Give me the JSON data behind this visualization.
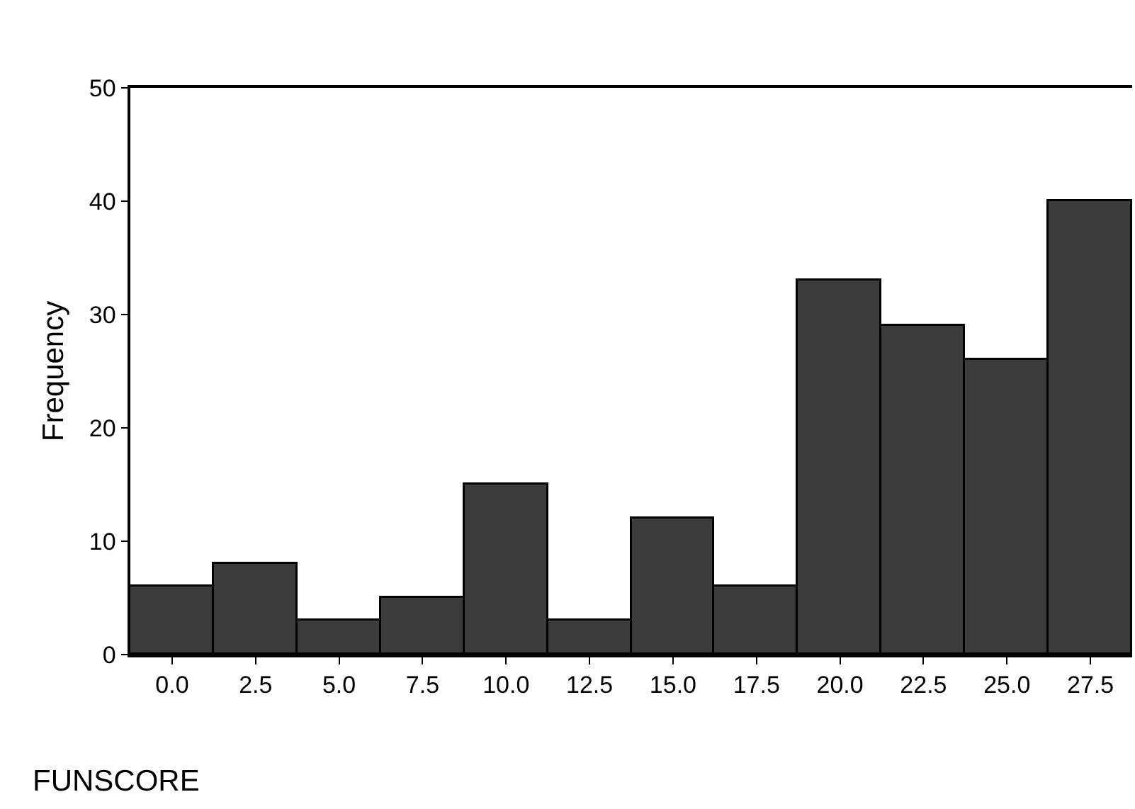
{
  "chart_data": {
    "type": "histogram",
    "xlabel": "FUNSCORE",
    "ylabel": "Frequency",
    "bins": [
      -1.25,
      1.25,
      3.75,
      6.25,
      8.75,
      11.25,
      13.75,
      16.25,
      18.75,
      21.25,
      23.75,
      26.25,
      28.75
    ],
    "values": [
      6,
      8,
      3,
      5,
      15,
      3,
      12,
      6,
      33,
      29,
      26,
      40
    ],
    "color": "#3c3c3c",
    "xlim": [
      -1.25,
      28.75
    ],
    "xticks": [
      {
        "value": 0,
        "label": "0.0"
      },
      {
        "value": 2.5,
        "label": "2.5"
      },
      {
        "value": 5,
        "label": "5.0"
      },
      {
        "value": 7.5,
        "label": "7.5"
      },
      {
        "value": 10,
        "label": "10.0"
      },
      {
        "value": 12.5,
        "label": "12.5"
      },
      {
        "value": 15,
        "label": "15.0"
      },
      {
        "value": 17.5,
        "label": "17.5"
      },
      {
        "value": 20,
        "label": "20.0"
      },
      {
        "value": 22.5,
        "label": "22.5"
      },
      {
        "value": 25,
        "label": "25.0"
      },
      {
        "value": 27.5,
        "label": "27.5"
      }
    ],
    "ylim": [
      0,
      50
    ],
    "yticks": [
      0,
      10,
      20,
      30,
      40,
      50
    ]
  }
}
